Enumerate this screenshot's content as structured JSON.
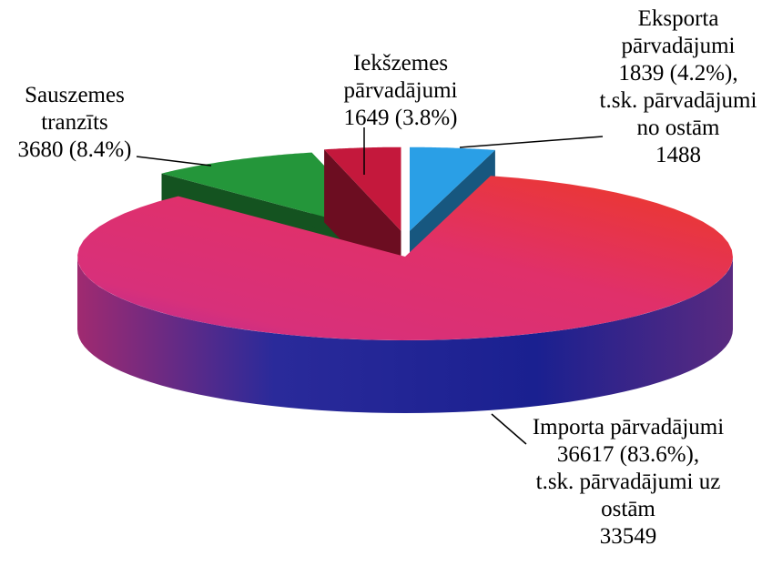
{
  "chart_data": {
    "type": "pie3d",
    "categories": [
      "Eksporta pārvadājumi",
      "Importa pārvadājumi",
      "Sauszemes tranzīts",
      "Iekšzemes pārvadājumi"
    ],
    "values": [
      1839,
      36617,
      3680,
      1649
    ],
    "value_labels": [
      "1839 (4.2%),",
      "36617 (83.6%),",
      "3680 (8.4%)",
      "1649 (3.8%)"
    ],
    "details": [
      "t.sk. pārvadājumi no ostām",
      "t.sk. pārvadājumi uz ostām",
      null,
      null
    ],
    "detail_values": [
      1488,
      33549,
      null,
      null
    ],
    "colors": [
      "#2a9fe6",
      "#e8302a",
      "#24963a",
      "#c4183c"
    ]
  }
}
